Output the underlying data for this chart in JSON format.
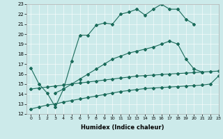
{
  "xlabel": "Humidex (Indice chaleur)",
  "bg_color": "#cceaea",
  "line_color": "#1a6b5a",
  "xmin": -0.5,
  "xmax": 23,
  "ymin": 12,
  "ymax": 23,
  "line1_x": [
    0,
    1,
    2,
    3,
    4,
    5,
    6,
    7,
    8,
    9,
    10,
    11,
    12,
    13,
    14,
    15,
    16,
    17,
    18,
    19,
    20
  ],
  "line1_y": [
    16.6,
    15.0,
    14.1,
    12.7,
    14.5,
    17.3,
    19.9,
    19.9,
    20.9,
    21.1,
    21.0,
    22.0,
    22.2,
    22.5,
    21.9,
    22.5,
    23.0,
    22.5,
    22.5,
    21.5,
    21.0
  ],
  "line2_x": [
    3,
    4,
    5,
    6,
    7,
    8,
    9,
    10,
    11,
    12,
    13,
    14,
    15,
    16,
    17,
    18,
    19,
    20,
    21
  ],
  "line2_y": [
    14.1,
    14.5,
    15.0,
    15.5,
    16.0,
    16.5,
    17.0,
    17.5,
    17.8,
    18.1,
    18.3,
    18.5,
    18.7,
    19.0,
    19.3,
    19.0,
    17.5,
    16.5,
    16.2
  ],
  "line3_x": [
    0,
    1,
    2,
    3,
    4,
    5,
    6,
    7,
    8,
    9,
    10,
    11,
    12,
    13,
    14,
    15,
    16,
    17,
    18,
    19,
    20,
    21,
    22,
    23
  ],
  "line3_y": [
    14.5,
    14.6,
    14.7,
    14.8,
    14.9,
    15.0,
    15.1,
    15.2,
    15.3,
    15.4,
    15.5,
    15.6,
    15.7,
    15.8,
    15.85,
    15.9,
    15.95,
    16.0,
    16.05,
    16.1,
    16.15,
    16.2,
    16.25,
    16.3
  ],
  "line4_x": [
    0,
    1,
    2,
    3,
    4,
    5,
    6,
    7,
    8,
    9,
    10,
    11,
    12,
    13,
    14,
    15,
    16,
    17,
    18,
    19,
    20,
    21,
    22,
    23
  ],
  "line4_y": [
    12.5,
    12.7,
    12.9,
    13.0,
    13.2,
    13.35,
    13.5,
    13.65,
    13.8,
    13.95,
    14.1,
    14.25,
    14.35,
    14.45,
    14.55,
    14.6,
    14.65,
    14.7,
    14.75,
    14.8,
    14.85,
    14.9,
    15.0,
    15.8
  ]
}
